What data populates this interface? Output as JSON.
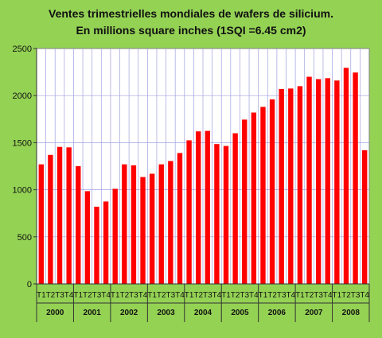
{
  "chart_data": {
    "type": "bar",
    "title": "Ventes trimestrielles mondiales de wafers de silicium.",
    "subtitle": "En millions square inches (1SQI =6.45 cm2)",
    "xlabel": "",
    "ylabel": "",
    "ylim": [
      0,
      2500
    ],
    "yticks": [
      0,
      500,
      1000,
      1500,
      2000,
      2500
    ],
    "grid": true,
    "legend": "none",
    "colors": {
      "bar": "#ff0000",
      "background": "#94d254",
      "plot": "#ffffff",
      "grid": "#a0a0e0"
    },
    "years": [
      "2000",
      "2001",
      "2002",
      "2003",
      "2004",
      "2005",
      "2006",
      "2007",
      "2008"
    ],
    "categories": [
      "T1",
      "T2",
      "T3",
      "T4",
      "T1",
      "T2",
      "T3",
      "T4",
      "T1",
      "T2",
      "T3",
      "T4",
      "T1",
      "T2",
      "T3",
      "T4",
      "T1",
      "T2",
      "T3",
      "T4",
      "T1",
      "T2",
      "T3",
      "T4",
      "T1",
      "T2",
      "T3",
      "T4",
      "T1",
      "T2",
      "T3",
      "T4",
      "T1",
      "T2",
      "T3",
      "T4"
    ],
    "values": [
      1270,
      1370,
      1455,
      1450,
      1250,
      985,
      820,
      875,
      1010,
      1270,
      1260,
      1135,
      1170,
      1270,
      1305,
      1390,
      1525,
      1620,
      1625,
      1485,
      1465,
      1600,
      1745,
      1820,
      1880,
      1960,
      2070,
      2075,
      2100,
      2200,
      2175,
      2185,
      2160,
      2295,
      2245,
      1420
    ]
  }
}
